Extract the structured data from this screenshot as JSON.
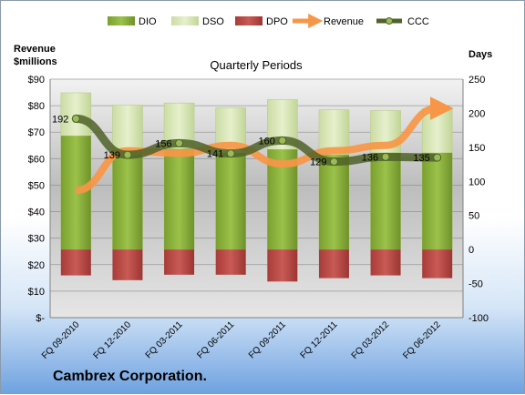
{
  "company": "Cambrex Corporation.",
  "chart_data": {
    "type": "bar",
    "title": "Quarterly Periods",
    "left_axis_title": [
      "Revenue",
      "$millions"
    ],
    "right_axis_title": "Days",
    "categories": [
      "FQ 09-2010",
      "FQ 12-2010",
      "FQ 03-2011",
      "FQ 06-2011",
      "FQ 09-2011",
      "FQ 12-2011",
      "FQ 03-2012",
      "FQ 06-2012"
    ],
    "left_axis": {
      "min": 0,
      "max": 90,
      "step": 10,
      "tick_labels": [
        "$-",
        "$10",
        "$20",
        "$30",
        "$40",
        "$50",
        "$60",
        "$70",
        "$80",
        "$90"
      ]
    },
    "right_axis": {
      "min": -100,
      "max": 250,
      "step": 50,
      "tick_labels": [
        "-100",
        "-50",
        "0",
        "50",
        "100",
        "150",
        "200",
        "250"
      ]
    },
    "series": [
      {
        "name": "DIO",
        "axis": "right",
        "color": "#8db33f",
        "values": [
          167,
          146,
          148,
          142,
          147,
          139,
          142,
          142
        ]
      },
      {
        "name": "DSO",
        "axis": "right",
        "color": "#d8e7b5",
        "values": [
          230,
          212,
          215,
          208,
          220,
          205,
          204,
          207
        ]
      },
      {
        "name": "DPO",
        "axis": "right",
        "color": "#c0504d",
        "values": [
          -38,
          -45,
          -37,
          -37,
          -47,
          -42,
          -38,
          -42
        ]
      },
      {
        "name": "Revenue",
        "axis": "left",
        "color": "#f79646",
        "values": [
          48,
          63,
          62,
          65,
          58,
          63,
          65,
          79
        ]
      },
      {
        "name": "CCC",
        "axis": "right",
        "color": "#4f6228",
        "values": [
          192,
          139,
          156,
          141,
          160,
          129,
          136,
          135
        ]
      }
    ],
    "ccc_labels": [
      "192",
      "139",
      "156",
      "141",
      "160",
      "129",
      "136",
      "135"
    ],
    "grid": true,
    "legend_position": "top"
  }
}
